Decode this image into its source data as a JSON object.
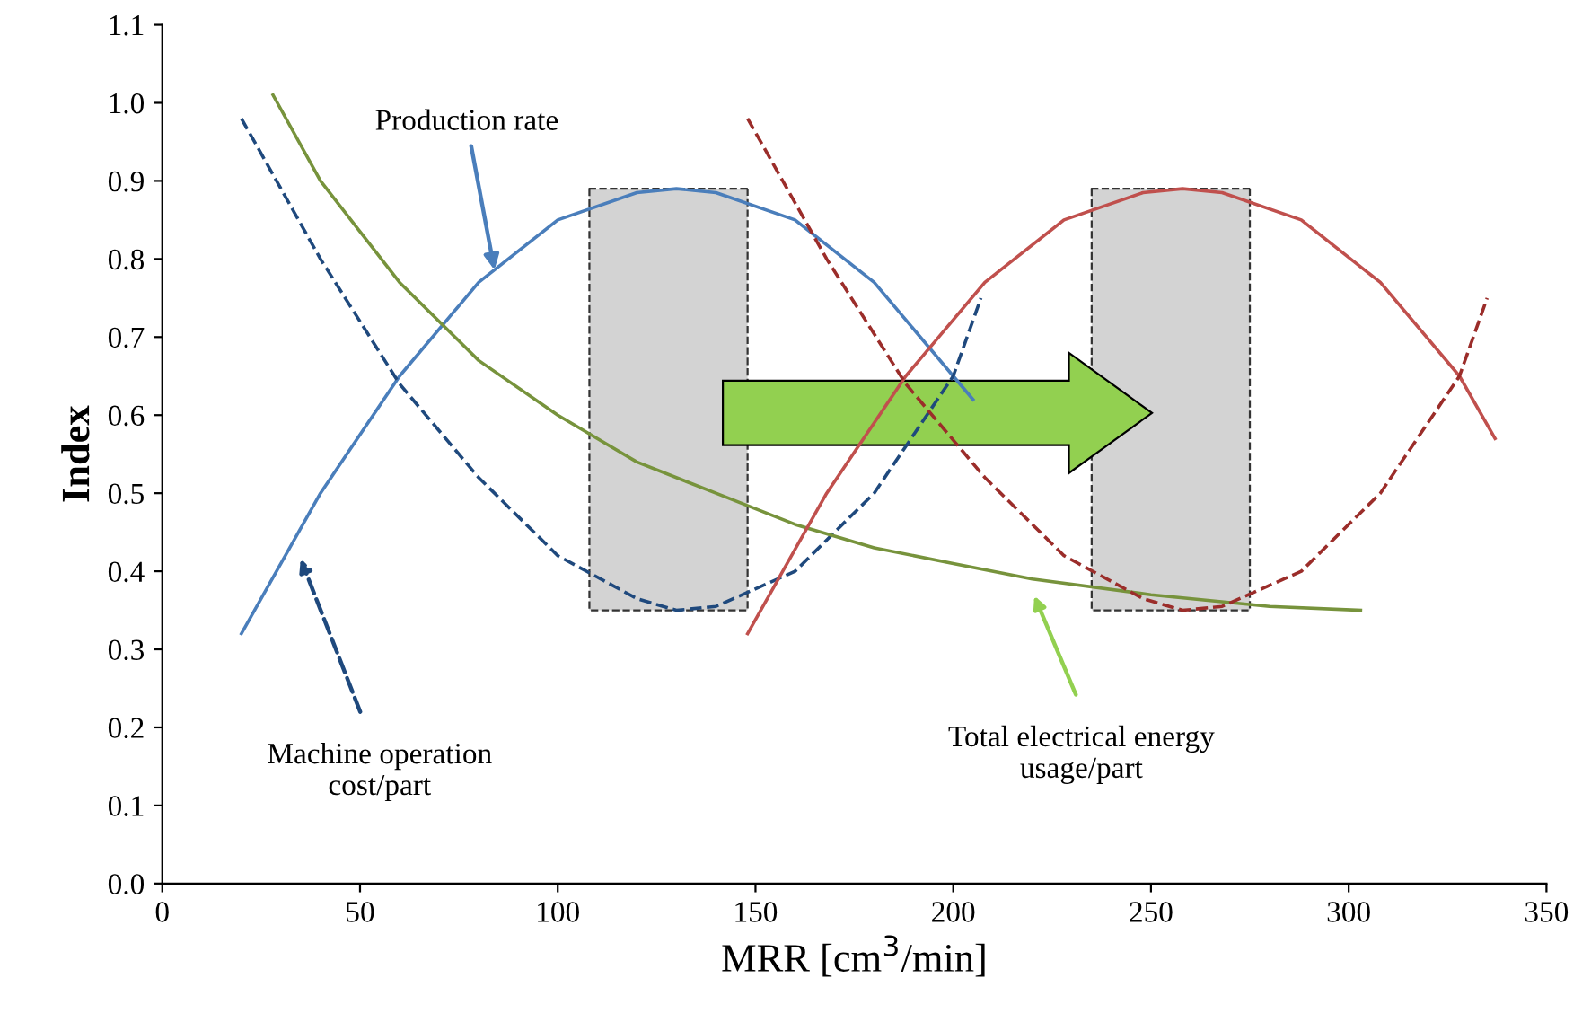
{
  "chart_data": {
    "type": "line",
    "xlabel": "MRR [cm$^{3}$/min]",
    "ylabel": "Index",
    "xlim": [
      0,
      350
    ],
    "xticks": [
      0,
      50,
      100,
      150,
      200,
      250,
      300,
      350
    ],
    "ylim": [
      0,
      1.1
    ],
    "yticks": [
      {
        "value": 0,
        "label": "0.0"
      },
      {
        "value": 0.1,
        "label": "0.1"
      },
      {
        "value": 0.2,
        "label": "0.2"
      },
      {
        "value": 0.3,
        "label": "0.3"
      },
      {
        "value": 0.4,
        "label": "0.4"
      },
      {
        "value": 0.5,
        "label": "0.5"
      },
      {
        "value": 0.6,
        "label": "0.6"
      },
      {
        "value": 0.7,
        "label": "0.7"
      },
      {
        "value": 0.8,
        "label": "0.8"
      },
      {
        "value": 0.9,
        "label": "0.9"
      },
      {
        "value": 1.0,
        "label": "1.0"
      },
      {
        "value": 1.1,
        "label": "1.1"
      }
    ],
    "grid": false,
    "legend": false,
    "marker": "none",
    "series": [
      {
        "color": "#4a7ebb",
        "line_style": "solid",
        "x": [
          20,
          40,
          60,
          80,
          100,
          120,
          130,
          140,
          160,
          180,
          200,
          205
        ],
        "values": [
          0.32,
          0.5,
          0.65,
          0.77,
          0.85,
          0.885,
          0.89,
          0.885,
          0.85,
          0.77,
          0.65,
          0.62
        ]
      },
      {
        "color": "#1f497d",
        "line_style": "dashed",
        "x": [
          20,
          40,
          60,
          80,
          100,
          120,
          130,
          140,
          160,
          180,
          200,
          207
        ],
        "values": [
          0.98,
          0.8,
          0.64,
          0.52,
          0.42,
          0.365,
          0.35,
          0.355,
          0.4,
          0.5,
          0.65,
          0.75
        ]
      },
      {
        "color": "#77933c",
        "line_style": "solid",
        "x": [
          28,
          40,
          60,
          80,
          100,
          120,
          140,
          160,
          180,
          200,
          220,
          250,
          280,
          303
        ],
        "values": [
          1.01,
          0.9,
          0.77,
          0.67,
          0.6,
          0.54,
          0.5,
          0.46,
          0.43,
          0.41,
          0.39,
          0.37,
          0.355,
          0.35
        ]
      },
      {
        "color": "#c0504d",
        "line_style": "solid",
        "x": [
          148,
          168,
          188,
          208,
          228,
          248,
          258,
          268,
          288,
          308,
          328,
          337
        ],
        "values": [
          0.32,
          0.5,
          0.65,
          0.77,
          0.85,
          0.885,
          0.89,
          0.885,
          0.85,
          0.77,
          0.65,
          0.57
        ]
      },
      {
        "color": "#9b2d2a",
        "line_style": "dashed",
        "x": [
          148,
          168,
          188,
          208,
          228,
          248,
          258,
          268,
          288,
          308,
          328,
          335
        ],
        "values": [
          0.98,
          0.8,
          0.64,
          0.52,
          0.42,
          0.365,
          0.35,
          0.355,
          0.4,
          0.5,
          0.65,
          0.75
        ]
      }
    ],
    "bands": [
      {
        "axis": "x",
        "from": 108,
        "to": 148,
        "color": "#d3d3d3"
      },
      {
        "axis": "x",
        "from": 235,
        "to": 275,
        "color": "#d3d3d3"
      }
    ],
    "annotations": [
      {
        "text": "Production rate",
        "x": 84,
        "y": 0.786
      },
      "Machine operation\ncost/part",
      "Total electrical energy\nusage/part"
    ]
  }
}
